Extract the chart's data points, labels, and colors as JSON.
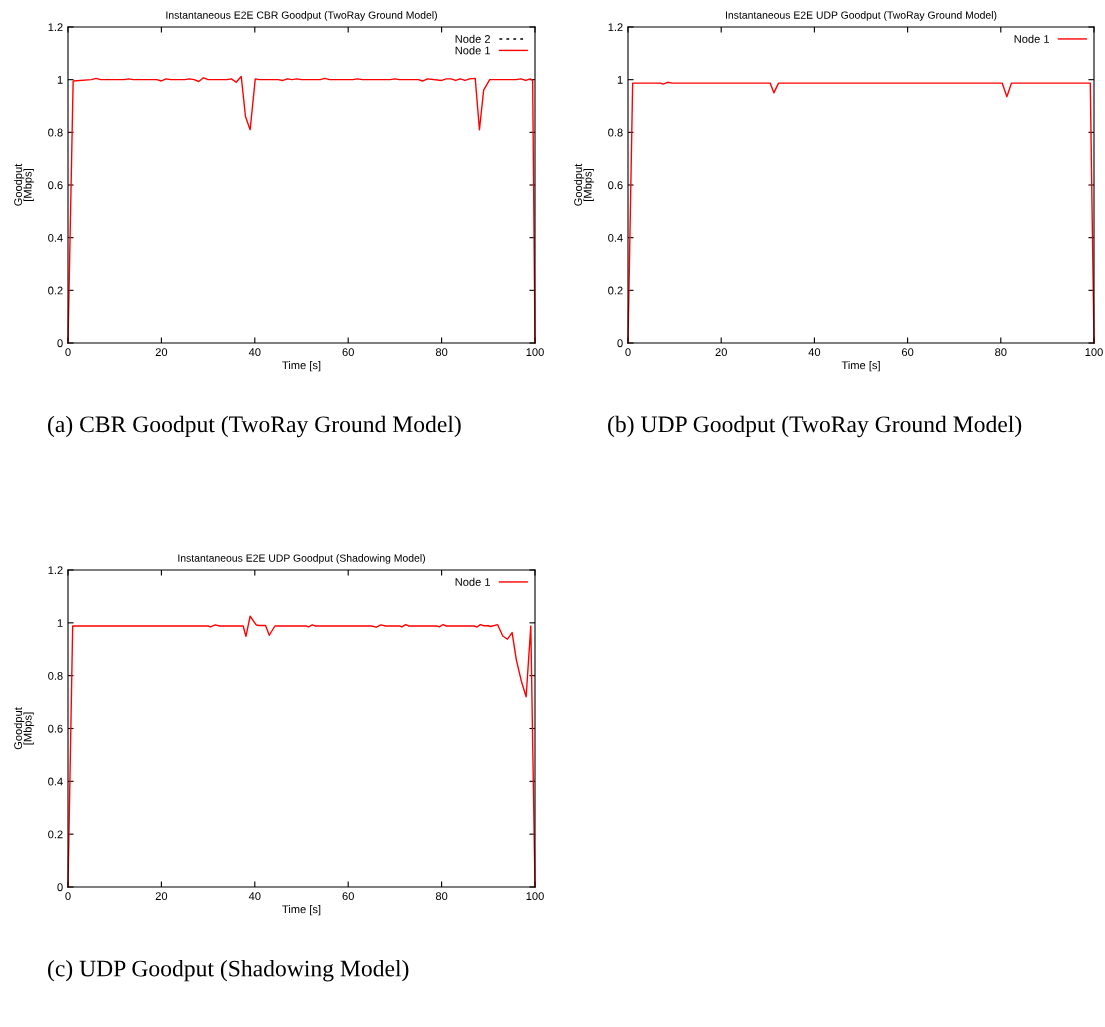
{
  "chart_data": [
    {
      "type": "line",
      "title": "Instantaneous E2E CBR Goodput (TwoRay Ground Model)",
      "xlabel": "Time [s]",
      "ylabel": "Goodput\n[Mbps]",
      "xlim": [
        0,
        100
      ],
      "xticks": [
        0,
        20,
        40,
        60,
        80,
        100
      ],
      "ylim": [
        0,
        1.2
      ],
      "yticks": [
        0,
        0.2,
        0.4,
        0.6,
        0.8,
        1,
        1.2
      ],
      "grid": false,
      "legend": "top right",
      "annotations": [
        "(a) CBR Goodput (TwoRay Ground Model)"
      ],
      "series": [
        {
          "name": "Node 2",
          "color": "#000000",
          "line_style": "dotted"
        },
        {
          "name": "Node 1",
          "color": "#ff0000",
          "line_style": "solid",
          "x": [
            0,
            1.1,
            5,
            6,
            7,
            12,
            13,
            14,
            19,
            20,
            21,
            22,
            25,
            26,
            27,
            28,
            29,
            30,
            34,
            35,
            36,
            37.1,
            38,
            39,
            40.1,
            41,
            45,
            46,
            47,
            48,
            49,
            50,
            54,
            55,
            56,
            61,
            62,
            63,
            69,
            70,
            71,
            75,
            76,
            77,
            80,
            81,
            82,
            83,
            84,
            85,
            86,
            87.2,
            88.1,
            89,
            90.3,
            96,
            97,
            98,
            99,
            99.5,
            100
          ],
          "values": [
            0,
            0.995,
            1,
            1.005,
            1,
            1,
            1.003,
            1,
            1,
            0.995,
            1.003,
            1,
            1,
            1.003,
            1,
            0.993,
            1.007,
            1,
            1,
            1.003,
            0.99,
            1.012,
            0.86,
            0.81,
            1.003,
            1,
            1,
            0.997,
            1.003,
            1,
            1.003,
            1,
            1,
            1.005,
            1,
            1,
            1.003,
            1,
            1,
            1.003,
            1,
            1,
            0.995,
            1.003,
            0.997,
            1.003,
            1.003,
            0.997,
            1.003,
            0.997,
            1.003,
            1.005,
            0.81,
            0.96,
            1,
            1,
            1.003,
            0.997,
            1.003,
            0.997,
            0
          ]
        }
      ]
    },
    {
      "type": "line",
      "title": "Instantaneous E2E UDP Goodput (TwoRay Ground Model)",
      "xlabel": "Time [s]",
      "ylabel": "Goodput\n[Mbps]",
      "xlim": [
        0,
        100
      ],
      "xticks": [
        0,
        20,
        40,
        60,
        80,
        100
      ],
      "ylim": [
        0,
        1.2
      ],
      "yticks": [
        0,
        0.2,
        0.4,
        0.6,
        0.8,
        1,
        1.2
      ],
      "grid": false,
      "legend": "top right",
      "annotations": [
        "(b) UDP Goodput (TwoRay Ground Model)"
      ],
      "series": [
        {
          "name": "Node 1",
          "color": "#ff0000",
          "line_style": "solid",
          "x": [
            0,
            1,
            7,
            7.5,
            8.5,
            9.5,
            30.5,
            31.3,
            32.3,
            80.3,
            81.3,
            82.3,
            99.2,
            100
          ],
          "values": [
            0,
            0.987,
            0.987,
            0.983,
            0.99,
            0.987,
            0.987,
            0.95,
            0.987,
            0.987,
            0.935,
            0.987,
            0.987,
            0
          ]
        }
      ]
    },
    {
      "type": "line",
      "title": "Instantaneous E2E UDP Goodput (Shadowing Model)",
      "xlabel": "Time [s]",
      "ylabel": "Goodput\n[Mbps]",
      "xlim": [
        0,
        100
      ],
      "xticks": [
        0,
        20,
        40,
        60,
        80,
        100
      ],
      "ylim": [
        0,
        1.2
      ],
      "yticks": [
        0,
        0.2,
        0.4,
        0.6,
        0.8,
        1,
        1.2
      ],
      "grid": false,
      "legend": "top right",
      "annotations": [
        "(c) UDP Goodput (Shadowing Model)"
      ],
      "series": [
        {
          "name": "Node 1",
          "color": "#ff0000",
          "line_style": "solid",
          "x": [
            0,
            1,
            30,
            30.5,
            31.5,
            32.5,
            37.5,
            38.1,
            39,
            40.3,
            41,
            42.3,
            43.1,
            44.3,
            51,
            51.5,
            52.3,
            53,
            65,
            66,
            67,
            68,
            71,
            71.5,
            72.3,
            73,
            79,
            79.5,
            80.3,
            81,
            87,
            87.6,
            88.3,
            89,
            90,
            90.5,
            92,
            93.1,
            94.1,
            95.1,
            96,
            97.1,
            98.1,
            99.1,
            100
          ],
          "values": [
            0,
            0.988,
            0.988,
            0.985,
            0.992,
            0.988,
            0.988,
            0.949,
            1.025,
            0.992,
            0.99,
            0.99,
            0.953,
            0.988,
            0.988,
            0.985,
            0.992,
            0.988,
            0.988,
            0.984,
            0.992,
            0.988,
            0.988,
            0.985,
            0.993,
            0.988,
            0.988,
            0.985,
            0.993,
            0.988,
            0.988,
            0.984,
            0.993,
            0.989,
            0.989,
            0.986,
            0.993,
            0.95,
            0.938,
            0.963,
            0.86,
            0.778,
            0.72,
            0.988,
            0
          ]
        }
      ]
    }
  ]
}
